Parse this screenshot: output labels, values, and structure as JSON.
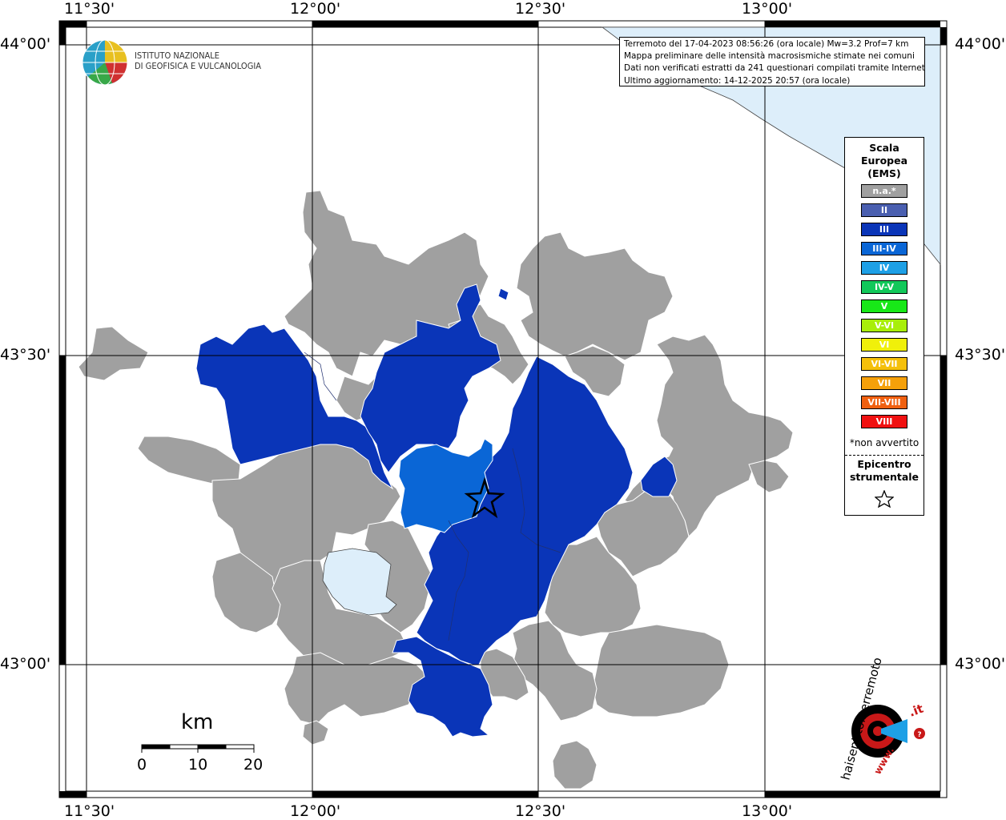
{
  "map": {
    "lon_labels": {
      "top": [
        "11°30'",
        "12°00'",
        "12°30'",
        "13°00'"
      ],
      "bottom": [
        "11°30'",
        "12°00'",
        "12°30'",
        "13°00'"
      ]
    },
    "lat_labels": {
      "left": [
        "44°00'",
        "43°30'",
        "43°00'"
      ],
      "right": [
        "44°00'",
        "43°30'",
        "43°00'"
      ]
    }
  },
  "logo": {
    "line1": "ISTITUTO NAZIONALE",
    "line2": "DI GEOFISICA E VULCANOLOGIA"
  },
  "info": {
    "line1": "Terremoto del 17-04-2023 08:56:26 (ora locale) Mw=3.2 Prof=7 km",
    "line2": "Mappa preliminare delle intensità macrosismiche stimate nei comuni",
    "line3": "Dati non verificati estratti da 241 questionari compilati tramite Internet.",
    "line4": "Ultimo aggiornamento: 14-12-2025 20:57 (ora locale)"
  },
  "legend": {
    "title1": "Scala",
    "title2": "Europea",
    "title3": "(EMS)",
    "items": [
      {
        "label": "n.a.*",
        "color": "#a0a0a0"
      },
      {
        "label": "II",
        "color": "#4a5fb0"
      },
      {
        "label": "III",
        "color": "#0a35b8"
      },
      {
        "label": "III-IV",
        "color": "#0a66d6"
      },
      {
        "label": "IV",
        "color": "#1ea0e6"
      },
      {
        "label": "IV-V",
        "color": "#12c85a"
      },
      {
        "label": "V",
        "color": "#18e818"
      },
      {
        "label": "V-VI",
        "color": "#a8ee0a"
      },
      {
        "label": "VI",
        "color": "#f0f00a"
      },
      {
        "label": "VI-VII",
        "color": "#f5c00a"
      },
      {
        "label": "VII",
        "color": "#f5a00a"
      },
      {
        "label": "VII-VIII",
        "color": "#f06010"
      },
      {
        "label": "VIII",
        "color": "#f01010"
      }
    ],
    "note": "*non avvertito",
    "epi1": "Epicentro",
    "epi2": "strumentale"
  },
  "scale_bar": {
    "unit": "km",
    "ticks": [
      "0",
      "10",
      "20"
    ]
  },
  "brand": {
    "text_a": "haisentitoilterremoto",
    "text_b": ".it",
    "text_c": "www."
  },
  "colors": {
    "na": "#a0a0a0",
    "iii": "#0a35b8",
    "iiiiv": "#0a66d6",
    "sea": "#ddeefa",
    "lake": "#ddeefa"
  }
}
